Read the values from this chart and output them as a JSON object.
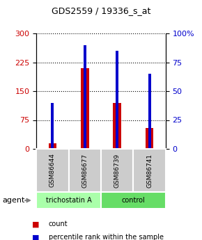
{
  "title": "GDS2559 / 19336_s_at",
  "samples": [
    "GSM86644",
    "GSM86677",
    "GSM86739",
    "GSM86741"
  ],
  "red_values": [
    15,
    210,
    120,
    55
  ],
  "blue_values": [
    40,
    90,
    85,
    65
  ],
  "left_ylim": [
    0,
    300
  ],
  "right_ylim": [
    0,
    100
  ],
  "left_yticks": [
    0,
    75,
    150,
    225,
    300
  ],
  "right_yticks": [
    0,
    25,
    50,
    75,
    100
  ],
  "right_yticklabels": [
    "0",
    "25",
    "50",
    "75",
    "100%"
  ],
  "left_color": "#cc0000",
  "right_color": "#0000cc",
  "bar_width": 0.25,
  "groups": [
    {
      "label": "trichostatin A",
      "samples": [
        0,
        1
      ],
      "color": "#aaffaa"
    },
    {
      "label": "control",
      "samples": [
        2,
        3
      ],
      "color": "#66dd66"
    }
  ],
  "agent_label": "agent",
  "legend_red": "count",
  "legend_blue": "percentile rank within the sample",
  "background_color": "#ffffff",
  "plot_bg": "#ffffff",
  "grid_color": "#000000"
}
